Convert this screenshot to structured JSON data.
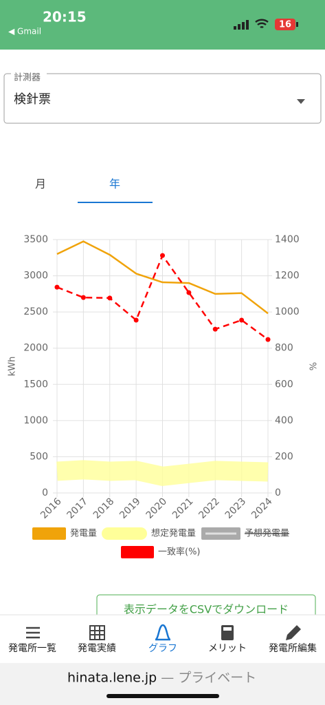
{
  "status_bar": {
    "time": "20:15",
    "back": "◀ Gmail",
    "battery": "16"
  },
  "selector": {
    "label": "計測器",
    "value": "検針票"
  },
  "tabs": [
    "月",
    "年"
  ],
  "selected_tab": 1,
  "chart_data": {
    "type": "line",
    "categories": [
      "2016",
      "2017",
      "2018",
      "2019",
      "2020",
      "2021",
      "2022",
      "2023",
      "2024"
    ],
    "ylabel": "kWh",
    "y2label": "%",
    "ylim": [
      0,
      3500
    ],
    "yticks": [
      0,
      500,
      1000,
      1500,
      2000,
      2500,
      3000,
      3500
    ],
    "y2lim": [
      0,
      1400
    ],
    "y2ticks": [
      0,
      200,
      400,
      600,
      800,
      1000,
      1200,
      1400
    ],
    "grid": true,
    "legend": "bottom",
    "series": [
      {
        "name": "発電量",
        "color": "#f0a30a",
        "values": [
          3300,
          3475,
          3290,
          3030,
          2910,
          2900,
          2750,
          2760,
          2480
        ]
      },
      {
        "name": "想定発電量",
        "color": "#ffff99",
        "values": [
          300,
          320,
          300,
          310,
          230,
          270,
          310,
          300,
          290
        ]
      },
      {
        "name": "予想発電量",
        "color": "#999999",
        "hidden": true,
        "values": [
          null,
          null,
          null,
          null,
          null,
          null,
          null,
          null,
          null
        ]
      },
      {
        "name": "一致率(%)",
        "color": "#ff0000",
        "axis": "y2",
        "dashed": true,
        "values": [
          1137,
          1080,
          1077,
          955,
          1312,
          1107,
          905,
          955,
          848
        ]
      }
    ]
  },
  "download_button": "表示データをCSVでダウンロード",
  "nav": [
    "発電所一覧",
    "発電実績",
    "グラフ",
    "メリット",
    "発電所編集"
  ],
  "nav_active": 2,
  "url_bar": {
    "host": "hinata.lene.jp",
    "mode": "— プライベート"
  }
}
